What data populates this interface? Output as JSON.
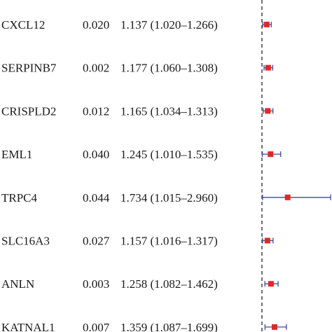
{
  "chart_data": {
    "type": "forest",
    "colors": {
      "point": "#e3262b",
      "ci_line": "#3b4a9b",
      "reference_line": "#222222",
      "text": "#1a1a1a"
    },
    "reference_line_style": "dashed",
    "reference_value": 1.0,
    "x_range": [
      1.0,
      2.96
    ],
    "rows": [
      {
        "gene": "CXCL12",
        "p": "0.020",
        "hr_text": "1.137 (1.020–1.266)",
        "hr": 1.137,
        "lo": 1.02,
        "hi": 1.266
      },
      {
        "gene": "SERPINB7",
        "p": "0.002",
        "hr_text": "1.177 (1.060–1.308)",
        "hr": 1.177,
        "lo": 1.06,
        "hi": 1.308
      },
      {
        "gene": "CRISPLD2",
        "p": "0.012",
        "hr_text": "1.165 (1.034–1.313)",
        "hr": 1.165,
        "lo": 1.034,
        "hi": 1.313
      },
      {
        "gene": "EML1",
        "p": "0.040",
        "hr_text": "1.245 (1.010–1.535)",
        "hr": 1.245,
        "lo": 1.01,
        "hi": 1.535
      },
      {
        "gene": "TRPC4",
        "p": "0.044",
        "hr_text": "1.734 (1.015–2.960)",
        "hr": 1.734,
        "lo": 1.015,
        "hi": 2.96
      },
      {
        "gene": "SLC16A3",
        "p": "0.027",
        "hr_text": "1.157 (1.016–1.317)",
        "hr": 1.157,
        "lo": 1.016,
        "hi": 1.317
      },
      {
        "gene": "ANLN",
        "p": "0.003",
        "hr_text": "1.258 (1.082–1.462)",
        "hr": 1.258,
        "lo": 1.082,
        "hi": 1.462
      },
      {
        "gene": "KATNAL1",
        "p": "0.007",
        "hr_text": "1.359 (1.087–1.699)",
        "hr": 1.359,
        "lo": 1.087,
        "hi": 1.699
      }
    ]
  }
}
